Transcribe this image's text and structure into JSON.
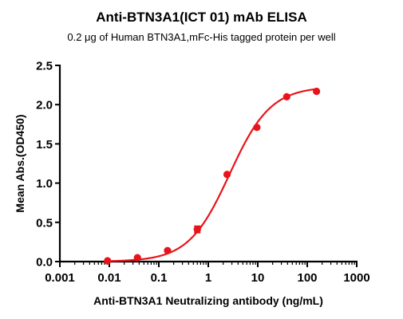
{
  "chart_data": {
    "type": "scatter",
    "title": "Anti-BTN3A1(ICT 01) mAb ELISA",
    "subtitle_pre": "0.2 ",
    "subtitle_unit": "μg",
    "subtitle_post": " of Human BTN3A1,mFc-His tagged protein per well",
    "xlabel": "Anti-BTN3A1 Neutralizing antibody (ng/mL)",
    "ylabel": "Mean Abs.(OD450)",
    "x_scale": "log",
    "xlim": [
      0.001,
      1000
    ],
    "ylim": [
      0,
      2.5
    ],
    "x_ticks": [
      0.001,
      0.01,
      0.1,
      1,
      10,
      100,
      1000
    ],
    "x_tick_labels": [
      "0.001",
      "0.01",
      "0.1",
      "1",
      "10",
      "100",
      "1000"
    ],
    "y_ticks": [
      0,
      0.5,
      1,
      1.5,
      2,
      2.5
    ],
    "y_tick_labels": [
      "0.0",
      "0.5",
      "1.0",
      "1.5",
      "2.0",
      "2.5"
    ],
    "grid": false,
    "legend": "none",
    "color": "#e8141b",
    "series": [
      {
        "x": [
          0.0092,
          0.037,
          0.15,
          0.6,
          2.4,
          9.6,
          38.5,
          154
        ],
        "y": [
          0.01,
          0.05,
          0.14,
          0.41,
          1.11,
          1.71,
          2.1,
          2.17
        ],
        "error": [
          0,
          0,
          0,
          0.04,
          0,
          0,
          0,
          0
        ]
      }
    ],
    "fit": {
      "bottom": 0.0,
      "top": 2.23,
      "ec50": 2.7,
      "hill": 1.05
    }
  }
}
